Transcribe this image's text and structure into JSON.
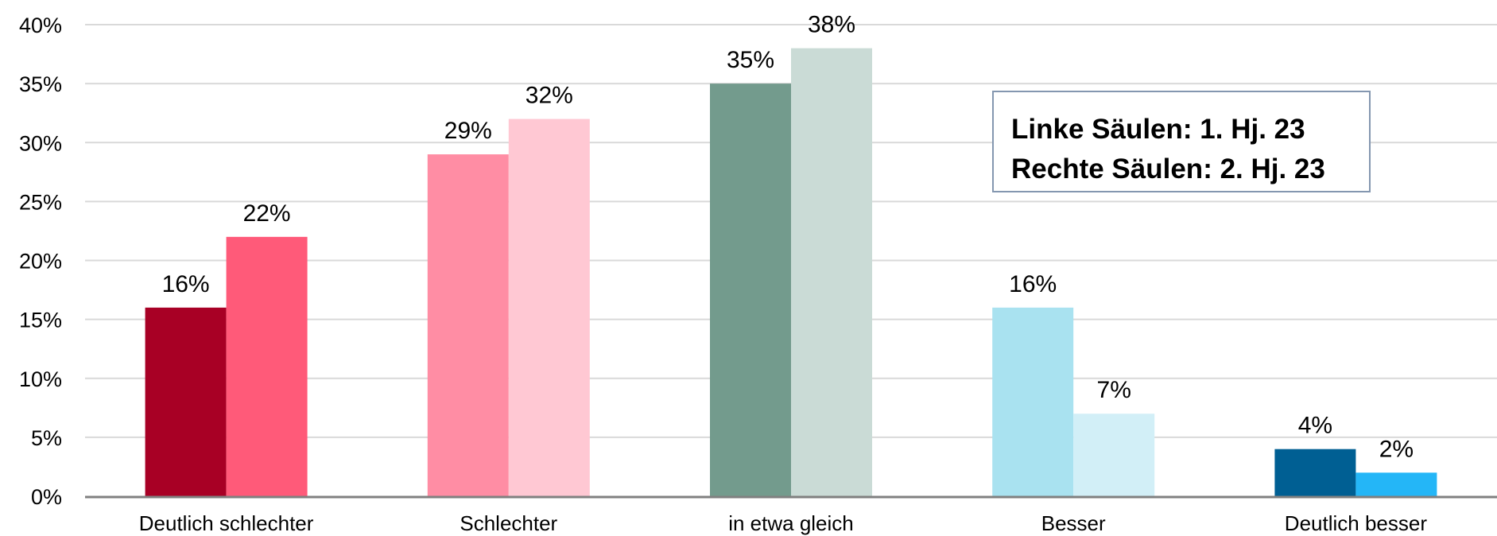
{
  "chart_data": {
    "type": "bar",
    "categories": [
      "Deutlich schlechter",
      "Schlechter",
      "in etwa gleich",
      "Besser",
      "Deutlich besser"
    ],
    "series": [
      {
        "values": [
          16,
          29,
          35,
          16,
          4
        ]
      },
      {
        "values": [
          22,
          32,
          38,
          7,
          2
        ]
      }
    ],
    "bar_colors": [
      [
        "#a80025",
        "#ff5a79"
      ],
      [
        "#ff8da4",
        "#ffc8d3"
      ],
      [
        "#739b8d",
        "#cadbd6"
      ],
      [
        "#a9e2f0",
        "#d2eff7"
      ],
      [
        "#005f93",
        "#24b6f7"
      ]
    ],
    "data_labels": [
      [
        "16%",
        "22%"
      ],
      [
        "29%",
        "32%"
      ],
      [
        "35%",
        "38%"
      ],
      [
        "16%",
        "7%"
      ],
      [
        "4%",
        "2%"
      ]
    ],
    "y_ticks": [
      "0%",
      "5%",
      "10%",
      "15%",
      "20%",
      "25%",
      "30%",
      "35%",
      "40%"
    ],
    "ylim": [
      0,
      40
    ],
    "grid": true,
    "annotation": [
      "Linke Säulen: 1. Hj. 23",
      "Rechte Säulen: 2. Hj. 23"
    ]
  }
}
